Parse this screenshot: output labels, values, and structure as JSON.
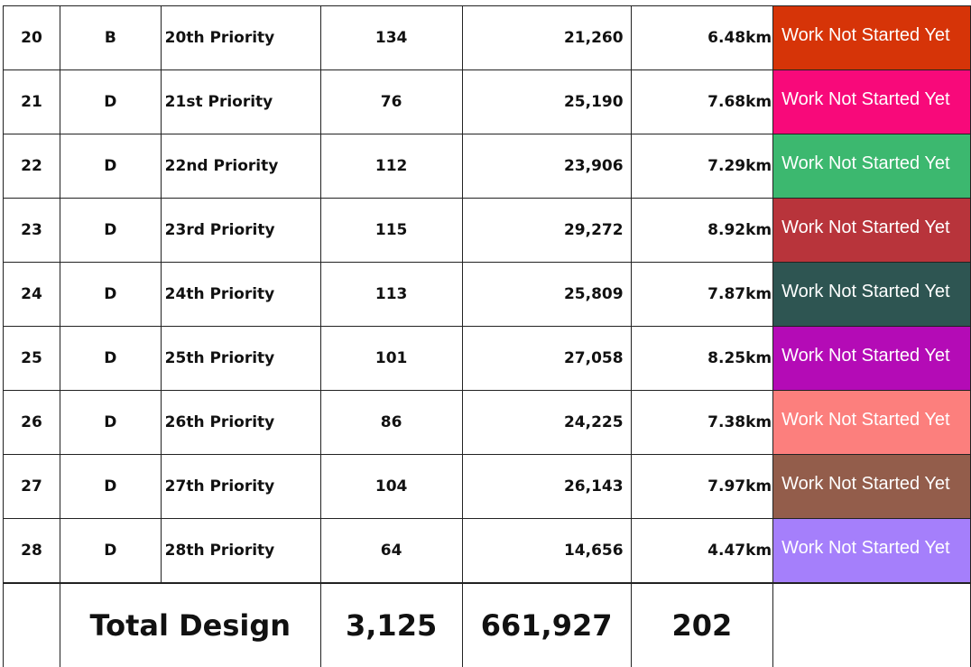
{
  "rows": [
    {
      "no": "20",
      "cls": "B",
      "priority": "20th Priority",
      "count": "134",
      "value": "21,260",
      "length": "6.48km",
      "status": "Work Not Started Yet",
      "color": "#d63408"
    },
    {
      "no": "21",
      "cls": "D",
      "priority": "21st Priority",
      "count": "76",
      "value": "25,190",
      "length": "7.68km",
      "status": "Work Not Started Yet",
      "color": "#f8097a"
    },
    {
      "no": "22",
      "cls": "D",
      "priority": "22nd Priority",
      "count": "112",
      "value": "23,906",
      "length": "7.29km",
      "status": "Work Not Started Yet",
      "color": "#3cb86f"
    },
    {
      "no": "23",
      "cls": "D",
      "priority": "23rd Priority",
      "count": "115",
      "value": "29,272",
      "length": "8.92km",
      "status": "Work Not Started Yet",
      "color": "#b8343b"
    },
    {
      "no": "24",
      "cls": "D",
      "priority": "24th Priority",
      "count": "113",
      "value": "25,809",
      "length": "7.87km",
      "status": "Work Not Started Yet",
      "color": "#2e5552"
    },
    {
      "no": "25",
      "cls": "D",
      "priority": "25th Priority",
      "count": "101",
      "value": "27,058",
      "length": "8.25km",
      "status": "Work Not Started Yet",
      "color": "#b40bb6"
    },
    {
      "no": "26",
      "cls": "D",
      "priority": "26th Priority",
      "count": "86",
      "value": "24,225",
      "length": "7.38km",
      "status": "Work Not Started Yet",
      "color": "#fc7f7d"
    },
    {
      "no": "27",
      "cls": "D",
      "priority": "27th Priority",
      "count": "104",
      "value": "26,143",
      "length": "7.97km",
      "status": "Work Not Started Yet",
      "color": "#935d4b"
    },
    {
      "no": "28",
      "cls": "D",
      "priority": "28th Priority",
      "count": "64",
      "value": "14,656",
      "length": "4.47km",
      "status": "Work Not Started Yet",
      "color": "#a57ffb"
    }
  ],
  "total": {
    "label": "Total Design",
    "count": "3,125",
    "value": "661,927",
    "length": "202"
  }
}
